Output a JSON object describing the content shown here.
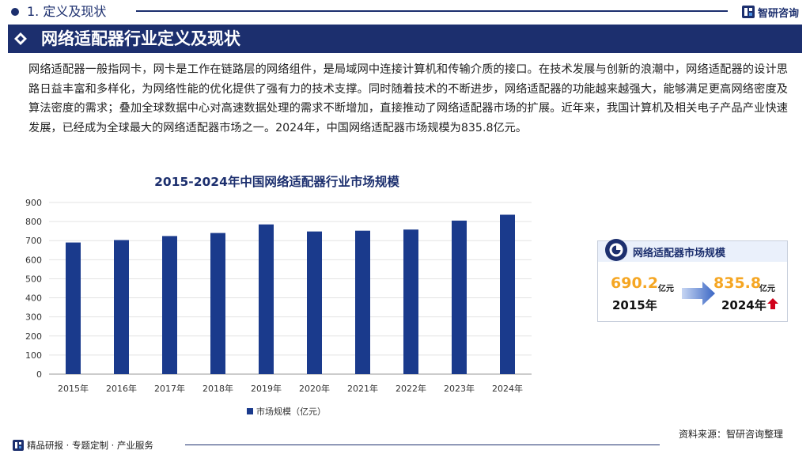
{
  "header": {
    "section_label": "1. 定义及现状",
    "brand_name": "智研咨询"
  },
  "banner": {
    "title": "网络适配器行业定义及现状"
  },
  "intro_text": "网络适配器一般指网卡，网卡是工作在链路层的网络组件，是局域网中连接计算机和传输介质的接口。在技术发展与创新的浪潮中，网络适配器的设计思路日益丰富和多样化，为网络性能的优化提供了强有力的技术支撑。同时随着技术的不断进步，网络适配器的功能越来越强大，能够满足更高网络密度及算法密度的需求；叠加全球数据中心对高速数据处理的需求不断增加，直接推动了网络适配器市场的扩展。近年来，我国计算机及相关电子产品产业快速发展，已经成为全球最大的网络适配器市场之一。2024年，中国网络适配器市场规模为835.8亿元。",
  "chart_data": {
    "type": "bar",
    "title": "2015-2024年中国网络适配器行业市场规模",
    "categories": [
      "2015年",
      "2016年",
      "2017年",
      "2018年",
      "2019年",
      "2020年",
      "2021年",
      "2022年",
      "2023年",
      "2024年"
    ],
    "series": [
      {
        "name": "市场规模（亿元）",
        "values": [
          690.2,
          703,
          724,
          740,
          785,
          748,
          752,
          758,
          805,
          835.8
        ]
      }
    ],
    "ylim": [
      0,
      900
    ],
    "yticks": [
      0,
      100,
      200,
      300,
      400,
      500,
      600,
      700,
      800,
      900
    ],
    "grid": true,
    "legend_position": "bottom",
    "bar_color": "#1a3a8c"
  },
  "info_card": {
    "title": "网络适配器市场规模",
    "start_value": "690.2",
    "start_unit": "亿元",
    "start_year": "2015年",
    "end_value": "835.8",
    "end_unit": "亿元",
    "end_year": "2024年",
    "trend": "up-arrow-icon"
  },
  "footer": {
    "tagline": "精品研报 · 专题定制 · 产业服务",
    "source": "资料来源：智研咨询整理"
  },
  "colors": {
    "navy": "#1c2f6e",
    "accent_orange": "#f5a623",
    "up_red": "#d0021b"
  }
}
